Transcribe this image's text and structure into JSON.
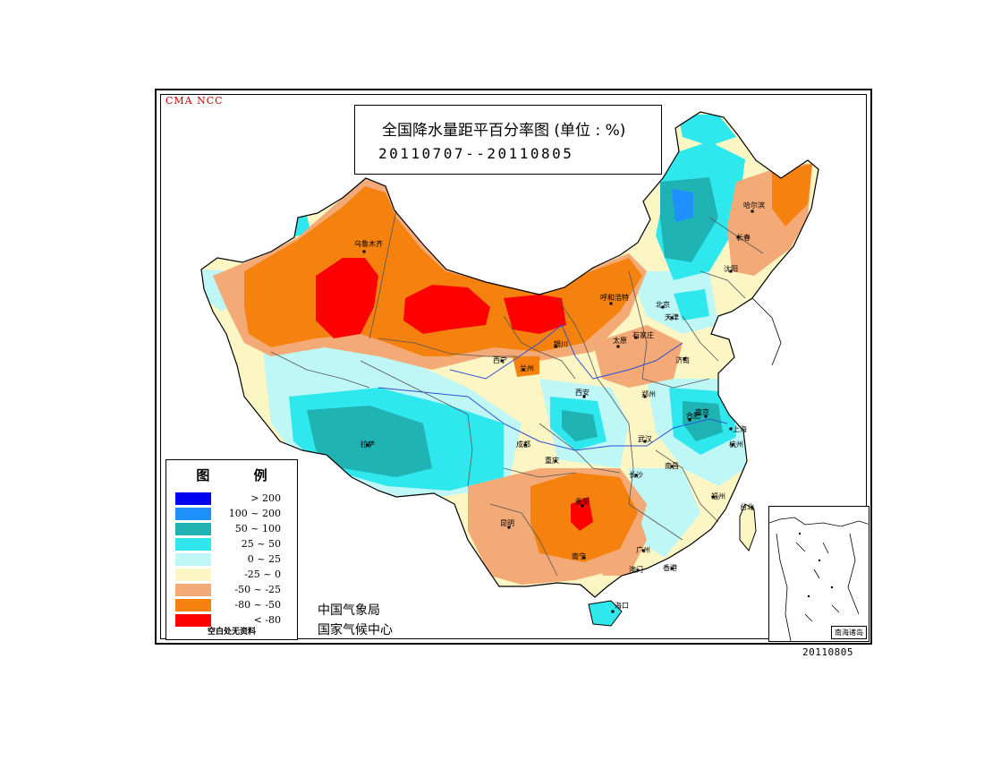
{
  "agency_tag": "CMA  NCC",
  "title": "全国降水量距平百分率图 (单位 : %)",
  "period": "20110707--20110805",
  "legend": {
    "title": "图 例",
    "items": [
      {
        "label": "> 200",
        "color": "#0000f0"
      },
      {
        "label": "100 ~ 200",
        "color": "#1e90ff"
      },
      {
        "label": "50 ~ 100",
        "color": "#1fb3b3"
      },
      {
        "label": "25 ~ 50",
        "color": "#2ee8ee"
      },
      {
        "label": "0 ~ 25",
        "color": "#bff6f6"
      },
      {
        "label": "-25 ~ 0",
        "color": "#fcf6c4"
      },
      {
        "label": "-50 ~ -25",
        "color": "#f4aa76"
      },
      {
        "label": "-80 ~ -50",
        "color": "#f5820f"
      },
      {
        "label": "< -80",
        "color": "#ff0000"
      }
    ],
    "note": "空白处无资料"
  },
  "org_line1": "中国气象局",
  "org_line2": "国家气候中心",
  "inset_label": "南海诸岛",
  "footer_date": "20110805",
  "cities": [
    {
      "name": "乌鲁木齐"
    },
    {
      "name": "哈尔滨"
    },
    {
      "name": "长春"
    },
    {
      "name": "沈阳"
    },
    {
      "name": "呼和浩特"
    },
    {
      "name": "北京"
    },
    {
      "name": "天津"
    },
    {
      "name": "石家庄"
    },
    {
      "name": "太原"
    },
    {
      "name": "银川"
    },
    {
      "name": "西宁"
    },
    {
      "name": "兰州"
    },
    {
      "name": "济南"
    },
    {
      "name": "西安"
    },
    {
      "name": "郑州"
    },
    {
      "name": "合肥"
    },
    {
      "name": "南京"
    },
    {
      "name": "上海"
    },
    {
      "name": "杭州"
    },
    {
      "name": "拉萨"
    },
    {
      "name": "成都"
    },
    {
      "name": "重庆"
    },
    {
      "name": "武汉"
    },
    {
      "name": "长沙"
    },
    {
      "name": "南昌"
    },
    {
      "name": "福州"
    },
    {
      "name": "台北"
    },
    {
      "name": "贵阳"
    },
    {
      "name": "昆明"
    },
    {
      "name": "南宁"
    },
    {
      "name": "广州"
    },
    {
      "name": "香港"
    },
    {
      "name": "澳门"
    },
    {
      "name": "海口"
    }
  ]
}
